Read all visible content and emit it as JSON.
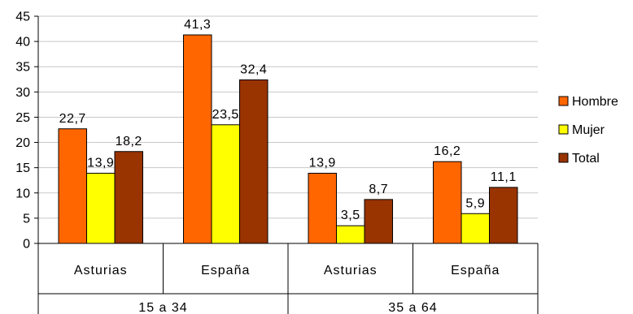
{
  "chart_data": {
    "type": "bar",
    "groups": [
      {
        "label": "15 a 34",
        "categories": [
          "Asturias",
          "España"
        ]
      },
      {
        "label": "35 a 64",
        "categories": [
          "Asturias",
          "España"
        ]
      }
    ],
    "categories": [
      "Asturias",
      "España",
      "Asturias",
      "España"
    ],
    "series": [
      {
        "name": "Hombre",
        "color": "#FF6600",
        "values": [
          22.7,
          41.3,
          13.9,
          16.2
        ],
        "labels": [
          "22,7",
          "41,3",
          "13,9",
          "16,2"
        ]
      },
      {
        "name": "Mujer",
        "color": "#FFFF00",
        "values": [
          13.9,
          23.5,
          3.5,
          5.9
        ],
        "labels": [
          "13,9",
          "23,5",
          "3,5",
          "5,9"
        ]
      },
      {
        "name": "Total",
        "color": "#993300",
        "values": [
          18.2,
          32.4,
          8.7,
          11.1
        ],
        "labels": [
          "18,2",
          "32,4",
          "8,7",
          "11,1"
        ]
      }
    ],
    "yticks": [
      "0",
      "5",
      "10",
      "15",
      "20",
      "25",
      "30",
      "35",
      "40",
      "45"
    ],
    "ylim": [
      0,
      45
    ],
    "grid": true,
    "legend_position": "right",
    "title": "",
    "xlabel": "",
    "ylabel": ""
  }
}
